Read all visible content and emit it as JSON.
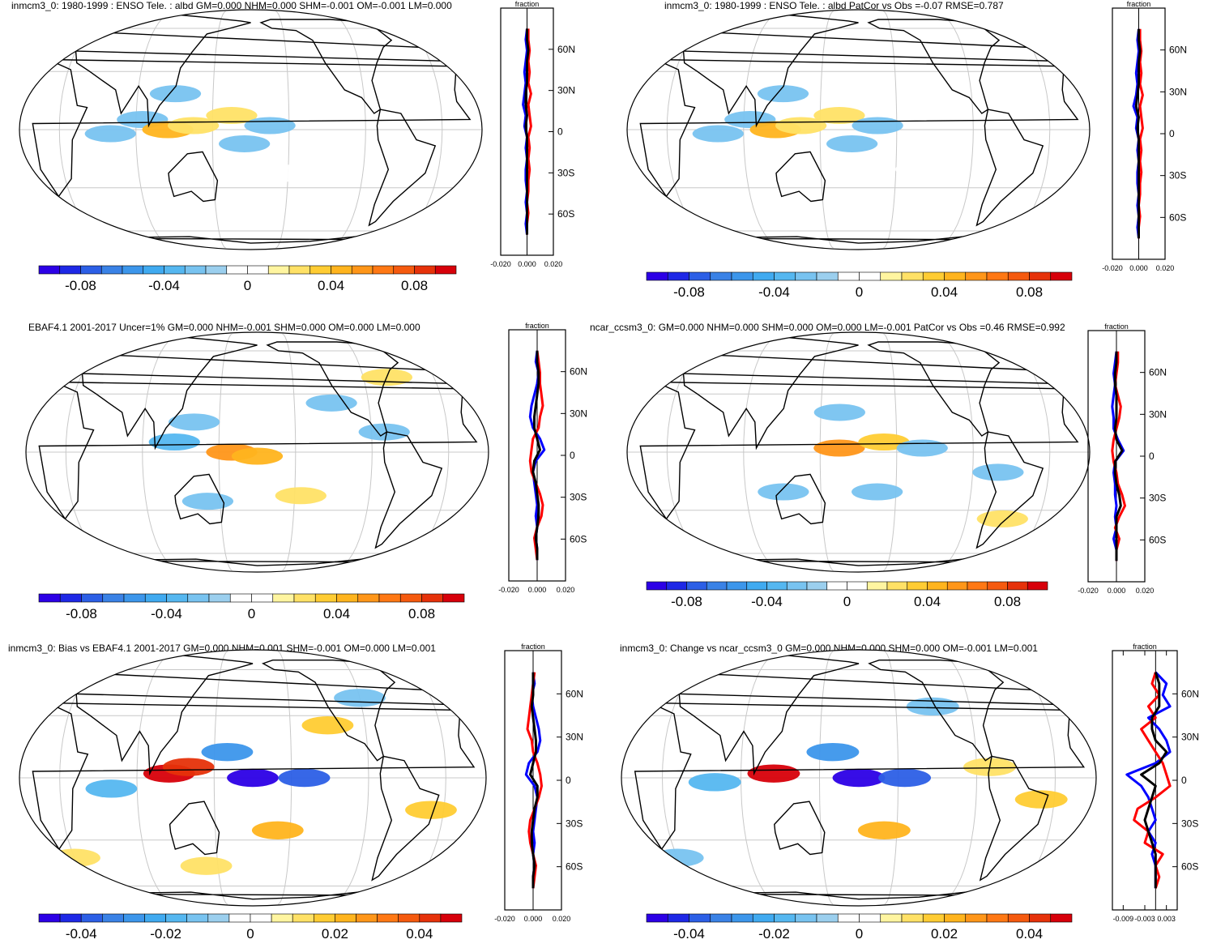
{
  "chart_data": [
    {
      "type": "heatmap",
      "title": "inmcm3_0: 1980-1999 : ENSO Tele. : albd GM=0.000 NHM=0.000 SHM=-0.001 OM=-0.001 LM=0.000",
      "colorbar_ticks": [
        "-0.08",
        "-0.04",
        "0",
        "0.04",
        "0.08"
      ],
      "colorbar_range": [
        -0.1,
        0.1
      ],
      "zonal": {
        "label": "fraction",
        "xticks": [
          "-0.020",
          "0.000",
          "0.020"
        ],
        "xrange": [
          -0.02,
          0.02
        ],
        "lat_ticks": [
          "60N",
          "30N",
          "0",
          "30S",
          "60S"
        ],
        "series": [
          {
            "color": "#0000ff",
            "values": [
              0.0,
              -0.001,
              0.0,
              -0.001,
              -0.002,
              -0.001,
              -0.002,
              -0.003,
              -0.001,
              -0.002,
              0.0,
              -0.001,
              0.0,
              -0.001,
              -0.001,
              0.0,
              -0.001,
              0.0,
              -0.001,
              0.0
            ]
          },
          {
            "color": "#ff0000",
            "values": [
              0.001,
              0.001,
              0.002,
              0.001,
              0.002,
              0.001,
              0.003,
              0.001,
              0.002,
              0.003,
              0.001,
              0.002,
              0.001,
              0.002,
              0.001,
              0.001,
              0.0,
              0.001,
              0.0,
              0.0
            ]
          },
          {
            "color": "#000000",
            "values": [
              0.0,
              0.0,
              0.001,
              0.0,
              0.0,
              0.0,
              -0.001,
              -0.001,
              0.0,
              -0.001,
              0.0,
              0.0,
              0.0,
              0.0,
              0.0,
              0.0,
              0.0,
              0.0,
              0.0,
              0.0
            ]
          }
        ]
      },
      "patches": [
        {
          "lon": 95,
          "lat": 5,
          "value": -0.03
        },
        {
          "lon": 115,
          "lat": 0,
          "value": 0.04
        },
        {
          "lon": 135,
          "lat": 2,
          "value": 0.02
        },
        {
          "lon": 165,
          "lat": 7,
          "value": 0.02
        },
        {
          "lon": 195,
          "lat": 2,
          "value": -0.03
        },
        {
          "lon": 175,
          "lat": -7,
          "value": -0.03
        },
        {
          "lon": 70,
          "lat": -2,
          "value": -0.03
        },
        {
          "lon": 120,
          "lat": 18,
          "value": -0.03
        },
        {
          "lon": 210,
          "lat": -22,
          "value": 0.01
        }
      ]
    },
    {
      "type": "heatmap",
      "title": "inmcm3_0: 1980-1999 : ENSO Tele. : albd PatCor vs Obs =-0.07 RMSE=0.787",
      "colorbar_ticks": [
        "-0.08",
        "-0.04",
        "0",
        "0.04",
        "0.08"
      ],
      "colorbar_range": [
        -0.1,
        0.1
      ],
      "zonal": {
        "label": "fraction",
        "xticks": [
          "-0.020",
          "0.000",
          "0.020"
        ],
        "xrange": [
          -0.02,
          0.02
        ],
        "lat_ticks": [
          "60N",
          "30N",
          "0",
          "30S",
          "60S"
        ],
        "series": [
          {
            "color": "#0000ff",
            "values": [
              0.0,
              -0.001,
              0.0,
              -0.001,
              -0.002,
              -0.001,
              -0.002,
              -0.004,
              -0.001,
              -0.002,
              0.0,
              -0.001,
              0.0,
              -0.001,
              -0.001,
              0.0,
              -0.001,
              0.0,
              -0.001,
              0.0
            ]
          },
          {
            "color": "#ff0000",
            "values": [
              0.001,
              0.001,
              0.002,
              0.001,
              0.002,
              0.001,
              0.003,
              0.001,
              0.002,
              0.003,
              0.001,
              0.002,
              0.001,
              0.002,
              0.001,
              0.001,
              0.0,
              0.001,
              0.0,
              0.0
            ]
          },
          {
            "color": "#000000",
            "values": [
              0.0,
              0.0,
              0.001,
              0.0,
              0.0,
              0.0,
              -0.001,
              -0.002,
              0.0,
              -0.001,
              0.0,
              0.0,
              0.0,
              0.0,
              0.0,
              0.0,
              0.0,
              0.0,
              0.0,
              0.0
            ]
          }
        ]
      },
      "patches": [
        {
          "lon": 95,
          "lat": 5,
          "value": -0.03
        },
        {
          "lon": 115,
          "lat": 0,
          "value": 0.04
        },
        {
          "lon": 135,
          "lat": 2,
          "value": 0.02
        },
        {
          "lon": 165,
          "lat": 7,
          "value": 0.02
        },
        {
          "lon": 195,
          "lat": 2,
          "value": -0.03
        },
        {
          "lon": 175,
          "lat": -7,
          "value": -0.03
        },
        {
          "lon": 70,
          "lat": -2,
          "value": -0.03
        },
        {
          "lon": 120,
          "lat": 18,
          "value": -0.03
        },
        {
          "lon": 230,
          "lat": -20,
          "value": 0.01
        }
      ]
    },
    {
      "type": "heatmap",
      "title": "EBAF4.1 2001-2017 Uncer=1% GM=0.000 NHM=-0.001 SHM=0.000 OM=0.000 LM=0.000",
      "colorbar_ticks": [
        "-0.08",
        "-0.04",
        "0",
        "0.04",
        "0.08"
      ],
      "colorbar_range": [
        -0.1,
        0.1
      ],
      "zonal": {
        "label": "fraction",
        "xticks": [
          "-0.020",
          "0.000",
          "0.020"
        ],
        "xrange": [
          -0.02,
          0.02
        ],
        "lat_ticks": [
          "60N",
          "30N",
          "0",
          "30S",
          "60S"
        ],
        "series": [
          {
            "color": "#0000ff",
            "values": [
              0.0,
              -0.001,
              0.001,
              0.0,
              -0.002,
              -0.004,
              -0.005,
              -0.003,
              0.002,
              0.005,
              -0.001,
              -0.003,
              -0.002,
              -0.001,
              0.0,
              -0.001,
              0.0,
              -0.001,
              0.0,
              0.0
            ]
          },
          {
            "color": "#ff0000",
            "values": [
              0.0,
              0.001,
              0.002,
              0.002,
              0.003,
              0.004,
              0.002,
              0.001,
              -0.003,
              -0.004,
              -0.005,
              -0.004,
              -0.001,
              0.002,
              0.004,
              0.003,
              0.0,
              -0.002,
              -0.001,
              0.0
            ]
          },
          {
            "color": "#000000",
            "values": [
              0.0,
              0.0,
              0.001,
              0.001,
              0.0,
              -0.001,
              -0.002,
              -0.002,
              0.0,
              0.002,
              -0.002,
              -0.003,
              -0.001,
              0.0,
              0.001,
              0.001,
              0.0,
              -0.001,
              0.0,
              0.0
            ]
          }
        ]
      },
      "patches": [
        {
          "lon": 115,
          "lat": 5,
          "value": -0.04
        },
        {
          "lon": 130,
          "lat": 15,
          "value": -0.03
        },
        {
          "lon": 160,
          "lat": 0,
          "value": 0.06
        },
        {
          "lon": 180,
          "lat": -2,
          "value": 0.04
        },
        {
          "lon": 215,
          "lat": -22,
          "value": 0.02
        },
        {
          "lon": 240,
          "lat": 25,
          "value": -0.02
        },
        {
          "lon": 140,
          "lat": -25,
          "value": -0.02
        },
        {
          "lon": 280,
          "lat": 10,
          "value": -0.02
        },
        {
          "lon": 290,
          "lat": 40,
          "value": 0.02
        }
      ]
    },
    {
      "type": "heatmap",
      "title": "ncar_ccsm3_0: GM=0.000 NHM=0.000 SHM=0.000 OM=0.000 LM=-0.001 PatCor vs Obs =0.46 RMSE=0.992",
      "colorbar_ticks": [
        "-0.08",
        "-0.04",
        "0",
        "0.04",
        "0.08"
      ],
      "colorbar_range": [
        -0.1,
        0.1
      ],
      "zonal": {
        "label": "fraction",
        "xticks": [
          "-0.020",
          "0.000",
          "0.020"
        ],
        "xrange": [
          -0.02,
          0.02
        ],
        "lat_ticks": [
          "60N",
          "30N",
          "0",
          "30S",
          "60S"
        ],
        "series": [
          {
            "color": "#0000ff",
            "values": [
              0.0,
              -0.001,
              -0.002,
              -0.001,
              -0.002,
              -0.003,
              -0.002,
              -0.002,
              0.001,
              0.005,
              -0.001,
              -0.002,
              -0.001,
              -0.001,
              0.0,
              -0.001,
              0.0,
              -0.002,
              0.0,
              0.0
            ]
          },
          {
            "color": "#ff0000",
            "values": [
              0.001,
              0.001,
              0.0,
              -0.001,
              0.001,
              0.003,
              0.002,
              0.0,
              -0.002,
              -0.003,
              -0.002,
              0.0,
              0.001,
              0.004,
              0.006,
              0.002,
              -0.001,
              0.002,
              0.0,
              0.0
            ]
          },
          {
            "color": "#000000",
            "values": [
              0.0,
              0.0,
              -0.001,
              -0.001,
              0.0,
              0.0,
              0.0,
              -0.001,
              0.0,
              0.004,
              -0.001,
              -0.001,
              0.0,
              0.002,
              0.003,
              0.0,
              0.0,
              0.0,
              0.0,
              0.0
            ]
          }
        ]
      },
      "patches": [
        {
          "lon": 165,
          "lat": 2,
          "value": 0.06
        },
        {
          "lon": 200,
          "lat": 5,
          "value": 0.03
        },
        {
          "lon": 230,
          "lat": 2,
          "value": -0.03
        },
        {
          "lon": 195,
          "lat": -20,
          "value": -0.03
        },
        {
          "lon": 165,
          "lat": 20,
          "value": -0.02
        },
        {
          "lon": 290,
          "lat": -10,
          "value": -0.02
        },
        {
          "lon": 300,
          "lat": -35,
          "value": 0.02
        },
        {
          "lon": 120,
          "lat": -20,
          "value": -0.02
        }
      ]
    },
    {
      "type": "heatmap",
      "title": "inmcm3_0: Bias vs EBAF4.1 2001-2017 GM=0.000 NHM=0.001 SHM=-0.001 OM=0.000 LM=0.001",
      "colorbar_ticks": [
        "-0.04",
        "-0.02",
        "0",
        "0.02",
        "0.04"
      ],
      "colorbar_range": [
        -0.05,
        0.05
      ],
      "zonal": {
        "label": "fraction",
        "xticks": [
          "-0.020",
          "0.000",
          "0.020"
        ],
        "xrange": [
          -0.02,
          0.02
        ],
        "lat_ticks": [
          "60N",
          "30N",
          "0",
          "30S",
          "60S"
        ],
        "series": [
          {
            "color": "#0000ff",
            "values": [
              0.0,
              0.001,
              -0.001,
              0.0,
              0.002,
              0.004,
              0.005,
              0.003,
              -0.003,
              -0.005,
              0.001,
              0.003,
              0.002,
              0.001,
              0.0,
              0.001,
              0.0,
              0.001,
              0.0,
              0.0
            ]
          },
          {
            "color": "#ff0000",
            "values": [
              0.001,
              0.0,
              -0.001,
              -0.002,
              -0.003,
              -0.004,
              -0.001,
              0.0,
              0.003,
              0.005,
              0.006,
              0.004,
              0.001,
              -0.002,
              -0.003,
              -0.002,
              0.0,
              0.002,
              0.001,
              0.0
            ]
          },
          {
            "color": "#000000",
            "values": [
              0.0,
              0.0,
              0.0,
              -0.001,
              0.0,
              0.001,
              0.002,
              0.002,
              0.0,
              -0.002,
              0.003,
              0.003,
              0.001,
              0.0,
              -0.001,
              -0.001,
              0.0,
              0.001,
              0.0,
              0.0
            ]
          }
        ]
      },
      "patches": [
        {
          "lon": 115,
          "lat": 2,
          "value": 0.05
        },
        {
          "lon": 130,
          "lat": 5,
          "value": 0.04
        },
        {
          "lon": 180,
          "lat": 0,
          "value": -0.05
        },
        {
          "lon": 220,
          "lat": 0,
          "value": -0.04
        },
        {
          "lon": 70,
          "lat": -5,
          "value": -0.02
        },
        {
          "lon": 160,
          "lat": 12,
          "value": -0.03
        },
        {
          "lon": 200,
          "lat": -25,
          "value": 0.02
        },
        {
          "lon": 240,
          "lat": 25,
          "value": 0.015
        },
        {
          "lon": 320,
          "lat": -15,
          "value": 0.015
        },
        {
          "lon": 30,
          "lat": -40,
          "value": 0.01
        },
        {
          "lon": 270,
          "lat": 40,
          "value": -0.01
        },
        {
          "lon": 140,
          "lat": -45,
          "value": 0.01
        }
      ]
    },
    {
      "type": "heatmap",
      "title": "inmcm3_0: Change vs ncar_ccsm3_0 GM=0.000 NHM=0.000 SHM=0.000 OM=-0.001 LM=0.001",
      "colorbar_ticks": [
        "-0.04",
        "-0.02",
        "0",
        "0.02",
        "0.04"
      ],
      "colorbar_range": [
        -0.05,
        0.05
      ],
      "zonal": {
        "label": "fraction",
        "xticks": [
          "-0.009",
          "-0.003",
          "0.003"
        ],
        "xrange": [
          -0.012,
          0.006
        ],
        "lat_ticks": [
          "60N",
          "30N",
          "0",
          "30S",
          "60S"
        ],
        "series": [
          {
            "color": "#0000ff",
            "values": [
              0.0,
              0.003,
              0.002,
              0.004,
              -0.002,
              0.001,
              0.003,
              0.004,
              0.0,
              -0.008,
              -0.004,
              -0.002,
              -0.001,
              0.0,
              -0.002,
              0.0,
              -0.001,
              0.0,
              0.0,
              0.0
            ]
          },
          {
            "color": "#ff0000",
            "values": [
              0.0,
              -0.001,
              0.001,
              -0.002,
              0.0,
              -0.004,
              -0.002,
              0.0,
              0.002,
              0.003,
              0.004,
              0.0,
              -0.005,
              -0.006,
              -0.002,
              -0.003,
              0.002,
              0.0,
              0.001,
              0.0
            ]
          },
          {
            "color": "#000000",
            "values": [
              0.0,
              0.001,
              0.001,
              0.001,
              -0.001,
              -0.001,
              0.0,
              0.003,
              0.001,
              -0.004,
              0.0,
              -0.001,
              -0.002,
              -0.003,
              -0.002,
              -0.001,
              0.0,
              0.0,
              0.0,
              0.0
            ]
          }
        ]
      },
      "patches": [
        {
          "lon": 115,
          "lat": 2,
          "value": 0.05
        },
        {
          "lon": 180,
          "lat": 0,
          "value": -0.05
        },
        {
          "lon": 215,
          "lat": 0,
          "value": -0.04
        },
        {
          "lon": 160,
          "lat": 12,
          "value": -0.03
        },
        {
          "lon": 70,
          "lat": -2,
          "value": -0.02
        },
        {
          "lon": 200,
          "lat": -25,
          "value": 0.02
        },
        {
          "lon": 320,
          "lat": -10,
          "value": 0.015
        },
        {
          "lon": 240,
          "lat": 35,
          "value": -0.01
        },
        {
          "lon": 30,
          "lat": -40,
          "value": -0.01
        },
        {
          "lon": 280,
          "lat": 5,
          "value": 0.01
        }
      ]
    }
  ]
}
